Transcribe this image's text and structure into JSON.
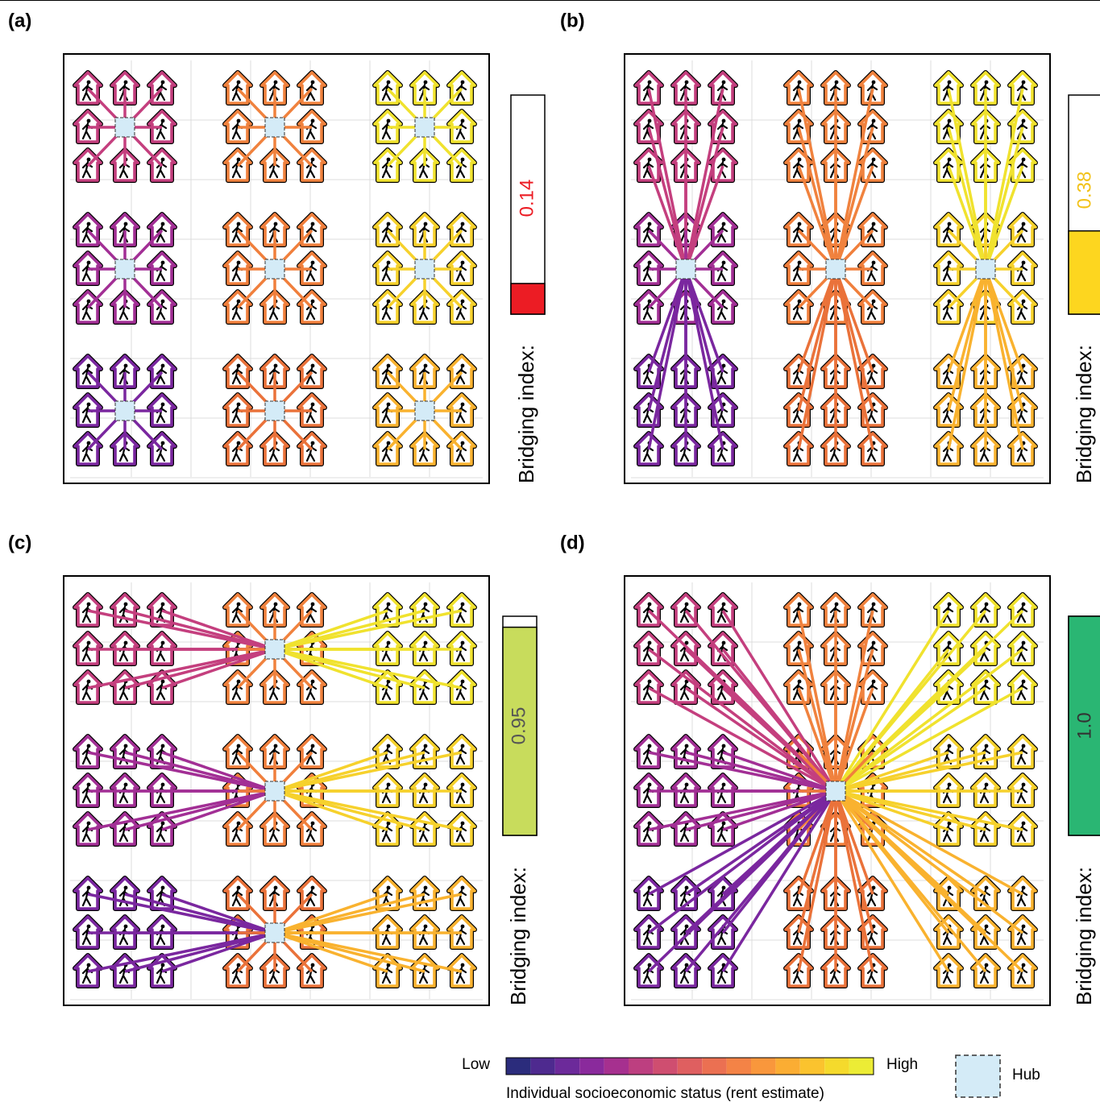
{
  "panels": [
    {
      "label": "(a)",
      "bridging_label": "Bridging index:",
      "bridging_index": 0.14,
      "color": "#ec1c24",
      "text_color": "#ec1c24"
    },
    {
      "label": "(b)",
      "bridging_label": "Bridging index:",
      "bridging_index": 0.38,
      "color": "#fdd61f",
      "text_color": "#f2c21a"
    },
    {
      "label": "(c)",
      "bridging_label": "Bridging index:",
      "bridging_index": 0.95,
      "color": "#c8dc5c",
      "text_color": "#555555"
    },
    {
      "label": "(d)",
      "bridging_label": "Bridging index:",
      "bridging_index": 1,
      "bridging_index_label": "1.0",
      "color": "#2ab673",
      "text_color": "#333333"
    }
  ],
  "legend": {
    "low": "Low",
    "high": "High",
    "caption": "Individual socioeconomic status (rent estimate)",
    "hub": "Hub"
  }
}
